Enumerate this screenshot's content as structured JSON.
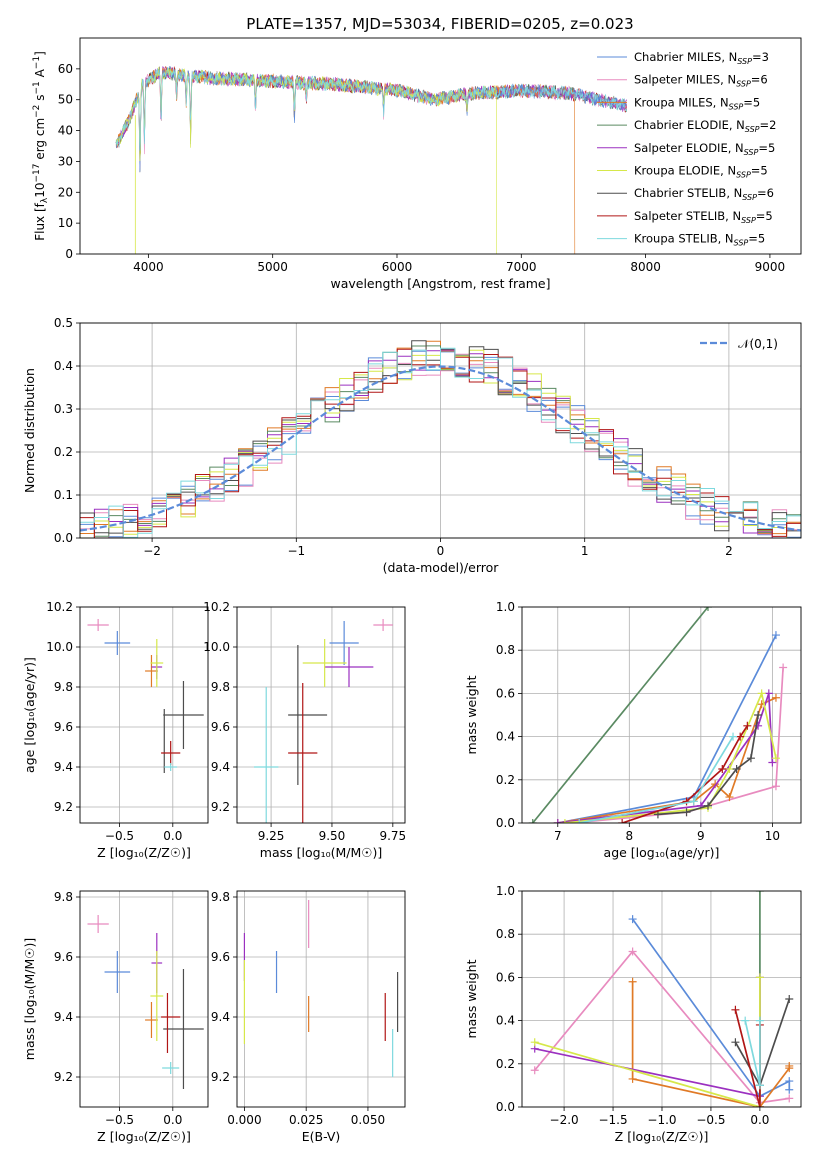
{
  "figure_title": "PLATE=1357, MJD=53034, FIBERID=0205, z=0.023",
  "colors": {
    "c0": "#5b8bd9",
    "c1": "#e88bbf",
    "c2": "#e07a26",
    "c3": "#5a8a62",
    "c4": "#9b30c0",
    "c5": "#d6e84a",
    "c6": "#4d4d4d",
    "c7": "#b01616",
    "c8": "#7ed9de"
  },
  "legend_entries": [
    {
      "text": "Chabrier MILES, N",
      "sub": "SSP",
      "tail": "=3",
      "color": "#5b8bd9"
    },
    {
      "text": "Salpeter MILES, N",
      "sub": "SSP",
      "tail": "=6",
      "color": "#e88bbf"
    },
    {
      "text": "Kroupa MILES, N",
      "sub": "SSP",
      "tail": "=5",
      "color": "#e07a26"
    },
    {
      "text": "Chabrier ELODIE, N",
      "sub": "SSP",
      "tail": "=2",
      "color": "#5a8a62"
    },
    {
      "text": "Salpeter ELODIE, N",
      "sub": "SSP",
      "tail": "=5",
      "color": "#9b30c0"
    },
    {
      "text": "Kroupa ELODIE, N",
      "sub": "SSP",
      "tail": "=5",
      "color": "#d6e84a"
    },
    {
      "text": "Chabrier STELIB, N",
      "sub": "SSP",
      "tail": "=6",
      "color": "#4d4d4d"
    },
    {
      "text": "Salpeter STELIB, N",
      "sub": "SSP",
      "tail": "=5",
      "color": "#b01616"
    },
    {
      "text": "Kroupa STELIB, N",
      "sub": "SSP",
      "tail": "=5",
      "color": "#7ed9de"
    }
  ],
  "chart_data": [
    {
      "id": "spectrum",
      "type": "line",
      "xlabel": "wavelength [Angstrom, rest frame]",
      "ylabel_parts": [
        "Flux [f",
        "λ",
        "10",
        "−17",
        " erg cm",
        "−2",
        " s",
        "−1",
        " A",
        "−1",
        "]"
      ],
      "xlim": [
        3450,
        9250
      ],
      "ylim": [
        0,
        70
      ],
      "xticks": [
        4000,
        5000,
        6000,
        7000,
        8000,
        9000
      ],
      "yticks": [
        0,
        10,
        20,
        30,
        40,
        50,
        60
      ],
      "wavelength_range": [
        3740,
        7850
      ],
      "continuum_knots": [
        [
          3740,
          35
        ],
        [
          3850,
          44
        ],
        [
          3950,
          55
        ],
        [
          4100,
          59
        ],
        [
          4500,
          57
        ],
        [
          5000,
          56
        ],
        [
          5500,
          55
        ],
        [
          6000,
          53
        ],
        [
          6300,
          50
        ],
        [
          6600,
          52
        ],
        [
          7000,
          53
        ],
        [
          7400,
          52
        ],
        [
          7850,
          48
        ]
      ],
      "absorption_lines": [
        [
          3933,
          28
        ],
        [
          3968,
          22
        ],
        [
          4102,
          18
        ],
        [
          4227,
          8
        ],
        [
          4304,
          10
        ],
        [
          4340,
          22
        ],
        [
          4861,
          10
        ],
        [
          5175,
          12
        ],
        [
          5270,
          6
        ],
        [
          5892,
          8
        ],
        [
          6563,
          6
        ]
      ],
      "truncation": {
        "c2": 7430,
        "c5": 6800
      }
    },
    {
      "id": "residuals",
      "type": "step-histogram",
      "xlabel": "(data-model)/error",
      "ylabel": "Normed distribution",
      "xlim": [
        -2.5,
        2.5
      ],
      "ylim": [
        0,
        0.5
      ],
      "xticks": [
        -2,
        -1,
        0,
        1,
        2
      ],
      "yticks": [
        0,
        0.1,
        0.2,
        0.3,
        0.4,
        0.5
      ],
      "bin_width": 0.1,
      "reference_curve": {
        "label": "𝒩(0,1)",
        "mean": 0,
        "sigma": 1,
        "color": "#5b8bd9"
      }
    },
    {
      "id": "age_vs_Z",
      "type": "errorbar",
      "xlabel": "Z [log₁₀(Z/Z☉)]",
      "ylabel": "age  [log₁₀(age/yr)]",
      "xlim": [
        -0.87,
        0.33
      ],
      "ylim": [
        9.12,
        10.2
      ],
      "xticks": [
        -0.5,
        0.0
      ],
      "xticklabels": [
        "−0.5",
        "0.0"
      ],
      "yticks": [
        9.2,
        9.4,
        9.6,
        9.8,
        10.0,
        10.2
      ],
      "points": [
        {
          "c": "c0",
          "x": -0.52,
          "y": 10.02,
          "xe": 0.12,
          "ye": 0.06
        },
        {
          "c": "c1",
          "x": -0.7,
          "y": 10.11,
          "xe": 0.1,
          "ye": 0.03
        },
        {
          "c": "c2",
          "x": -0.2,
          "y": 9.88,
          "xe": 0.06,
          "ye": 0.08
        },
        {
          "c": "c4",
          "x": -0.15,
          "y": 9.9,
          "xe": 0.05,
          "ye": 0.06
        },
        {
          "c": "c5",
          "x": -0.15,
          "y": 9.92,
          "xe": 0.06,
          "ye": 0.12
        },
        {
          "c": "c6",
          "x": 0.1,
          "y": 9.66,
          "xe": 0.19,
          "ye": 0.17
        },
        {
          "c": "c6",
          "x": -0.08,
          "y": 9.53,
          "xe": 0.0,
          "ye": 0.16
        },
        {
          "c": "c7",
          "x": -0.02,
          "y": 9.47,
          "xe": 0.09,
          "ye": 0.06
        },
        {
          "c": "c8",
          "x": -0.02,
          "y": 9.4,
          "xe": 0.06,
          "ye": 0.02
        }
      ]
    },
    {
      "id": "age_vs_mass",
      "type": "errorbar",
      "xlabel": "mass [log₁₀(M/M☉)]",
      "ylabel": "",
      "xlim": [
        9.11,
        9.8
      ],
      "ylim": [
        9.12,
        10.2
      ],
      "xticks": [
        9.25,
        9.5,
        9.75
      ],
      "xticklabels": [
        "9.25",
        "9.50",
        "9.75"
      ],
      "yticks": [
        9.2,
        9.4,
        9.6,
        9.8,
        10.0,
        10.2
      ],
      "points": [
        {
          "c": "c0",
          "x": 9.55,
          "y": 10.02,
          "xe": 0.06,
          "ye": 0.11
        },
        {
          "c": "c1",
          "x": 9.71,
          "y": 10.11,
          "xe": 0.04,
          "ye": 0.03
        },
        {
          "c": "c4",
          "x": 9.57,
          "y": 9.9,
          "xe": 0.1,
          "ye": 0.1
        },
        {
          "c": "c5",
          "x": 9.47,
          "y": 9.92,
          "xe": 0.09,
          "ye": 0.12
        },
        {
          "c": "c6",
          "x": 9.36,
          "y": 9.66,
          "xe": 0.0,
          "ye": 0.35
        },
        {
          "c": "c6",
          "x": 9.4,
          "y": 9.66,
          "xe": 0.08,
          "ye": 0.0
        },
        {
          "c": "c7",
          "x": 9.38,
          "y": 9.47,
          "xe": 0.06,
          "ye": 0.35
        },
        {
          "c": "c8",
          "x": 9.23,
          "y": 9.4,
          "xe": 0.05,
          "ye": 0.4
        }
      ]
    },
    {
      "id": "massweight_vs_age",
      "type": "line",
      "xlabel": "age  [log₁₀(age/yr)]",
      "ylabel": "mass weight",
      "xlim": [
        6.5,
        10.4
      ],
      "ylim": [
        0,
        1.0
      ],
      "xticks": [
        7,
        8,
        9,
        10
      ],
      "yticks": [
        0,
        0.2,
        0.4,
        0.6,
        0.8,
        1.0
      ],
      "series": [
        {
          "c": "c3",
          "x": [
            6.65,
            9.1
          ],
          "y": [
            0.0,
            1.0
          ]
        },
        {
          "c": "c0",
          "x": [
            7.0,
            8.9,
            10.05
          ],
          "y": [
            0.0,
            0.12,
            0.87
          ]
        },
        {
          "c": "c1",
          "x": [
            7.2,
            8.8,
            10.05,
            10.15
          ],
          "y": [
            0.0,
            0.05,
            0.17,
            0.72
          ]
        },
        {
          "c": "c2",
          "x": [
            7.0,
            8.9,
            9.2,
            9.4,
            9.85,
            10.05
          ],
          "y": [
            0.0,
            0.1,
            0.18,
            0.12,
            0.55,
            0.58
          ]
        },
        {
          "c": "c4",
          "x": [
            7.0,
            9.0,
            9.8,
            9.95,
            10.0
          ],
          "y": [
            0.0,
            0.08,
            0.45,
            0.6,
            0.28
          ]
        },
        {
          "c": "c5",
          "x": [
            7.1,
            9.1,
            9.4,
            9.85,
            10.05
          ],
          "y": [
            0.0,
            0.07,
            0.25,
            0.6,
            0.3
          ]
        },
        {
          "c": "c6",
          "x": [
            8.4,
            8.8,
            9.1,
            9.5,
            9.7,
            9.8
          ],
          "y": [
            0.04,
            0.05,
            0.08,
            0.25,
            0.3,
            0.5
          ]
        },
        {
          "c": "c7",
          "x": [
            7.9,
            8.8,
            9.3,
            9.55,
            9.65
          ],
          "y": [
            0.0,
            0.1,
            0.25,
            0.4,
            0.45
          ]
        },
        {
          "c": "c8",
          "x": [
            7.3,
            8.9,
            9.45
          ],
          "y": [
            0.0,
            0.1,
            0.4
          ]
        }
      ]
    },
    {
      "id": "mass_vs_Z",
      "type": "errorbar",
      "xlabel": "Z [log₁₀(Z/Z☉)]",
      "ylabel": "mass [log₁₀(M/M☉)]",
      "xlim": [
        -0.87,
        0.33
      ],
      "ylim": [
        9.1,
        9.82
      ],
      "xticks": [
        -0.5,
        0.0
      ],
      "xticklabels": [
        "−0.5",
        "0.0"
      ],
      "yticks": [
        9.2,
        9.4,
        9.6,
        9.8
      ],
      "points": [
        {
          "c": "c0",
          "x": -0.52,
          "y": 9.55,
          "xe": 0.12,
          "ye": 0.07
        },
        {
          "c": "c1",
          "x": -0.7,
          "y": 9.71,
          "xe": 0.1,
          "ye": 0.03
        },
        {
          "c": "c2",
          "x": -0.2,
          "y": 9.39,
          "xe": 0.06,
          "ye": 0.06
        },
        {
          "c": "c4",
          "x": -0.15,
          "y": 9.58,
          "xe": 0.05,
          "ye": 0.1
        },
        {
          "c": "c5",
          "x": -0.15,
          "y": 9.47,
          "xe": 0.06,
          "ye": 0.15
        },
        {
          "c": "c6",
          "x": 0.1,
          "y": 9.36,
          "xe": 0.19,
          "ye": 0.2
        },
        {
          "c": "c7",
          "x": -0.02,
          "y": 9.4,
          "xe": 0.09,
          "ye": 0.0
        },
        {
          "c": "c7",
          "x": -0.05,
          "y": 9.38,
          "xe": 0.0,
          "ye": 0.1
        },
        {
          "c": "c8",
          "x": -0.02,
          "y": 9.23,
          "xe": 0.08,
          "ye": 0.02
        }
      ]
    },
    {
      "id": "mass_vs_ebv",
      "type": "errorbar",
      "xlabel": "E(B-V)",
      "ylabel": "",
      "xlim": [
        -0.003,
        0.065
      ],
      "ylim": [
        9.1,
        9.82
      ],
      "xticks": [
        0.0,
        0.025,
        0.05
      ],
      "xticklabels": [
        "0.000",
        "0.025",
        "0.050"
      ],
      "yticks": [
        9.2,
        9.4,
        9.6,
        9.8
      ],
      "points": [
        {
          "c": "c1",
          "x": 0.026,
          "y": 9.71,
          "xe": 0.0,
          "ye": 0.08
        },
        {
          "c": "c4",
          "x": 0.0,
          "y": 9.6,
          "xe": 0.0,
          "ye": 0.08
        },
        {
          "c": "c0",
          "x": 0.013,
          "y": 9.55,
          "xe": 0.0,
          "ye": 0.07
        },
        {
          "c": "c5",
          "x": 0.0,
          "y": 9.45,
          "xe": 0.0,
          "ye": 0.14
        },
        {
          "c": "c2",
          "x": 0.026,
          "y": 9.41,
          "xe": 0.0,
          "ye": 0.06
        },
        {
          "c": "c7",
          "x": 0.057,
          "y": 9.4,
          "xe": 0.0,
          "ye": 0.08
        },
        {
          "c": "c6",
          "x": 0.062,
          "y": 9.45,
          "xe": 0.0,
          "ye": 0.1
        },
        {
          "c": "c8",
          "x": 0.06,
          "y": 9.28,
          "xe": 0.0,
          "ye": 0.08
        }
      ]
    },
    {
      "id": "massweight_vs_Z",
      "type": "line",
      "xlabel": "Z [log₁₀(Z/Z☉)]",
      "ylabel": "mass weight",
      "xlim": [
        -2.43,
        0.42
      ],
      "ylim": [
        0,
        1.0
      ],
      "xticks": [
        -2.0,
        -1.5,
        -1.0,
        -0.5,
        0.0
      ],
      "xticklabels": [
        "−2.0",
        "−1.5",
        "−1.0",
        "−0.5",
        "0.0"
      ],
      "yticks": [
        0,
        0.2,
        0.4,
        0.6,
        0.8,
        1.0
      ],
      "series": [
        {
          "c": "c3",
          "x": [
            0.0,
            0.0
          ],
          "y": [
            0.0,
            1.0
          ]
        },
        {
          "c": "c0",
          "x": [
            -1.3,
            0.0,
            0.3,
            0.3
          ],
          "y": [
            0.87,
            0.05,
            0.12,
            0.08
          ]
        },
        {
          "c": "c1",
          "x": [
            -2.3,
            -1.3,
            0.0,
            0.3
          ],
          "y": [
            0.17,
            0.72,
            0.02,
            0.04
          ]
        },
        {
          "c": "c2",
          "x": [
            -1.3,
            -1.3,
            0.0,
            0.3,
            0.3
          ],
          "y": [
            0.58,
            0.13,
            0.0,
            0.18,
            0.19
          ]
        },
        {
          "c": "c4",
          "x": [
            -2.3,
            0.0,
            0.0
          ],
          "y": [
            0.27,
            0.05,
            0.6
          ]
        },
        {
          "c": "c5",
          "x": [
            -2.3,
            0.0,
            0.0
          ],
          "y": [
            0.3,
            0.0,
            0.6
          ]
        },
        {
          "c": "c6",
          "x": [
            -0.25,
            0.0,
            0.3
          ],
          "y": [
            0.3,
            0.1,
            0.5
          ]
        },
        {
          "c": "c7",
          "x": [
            -0.25,
            0.0,
            0.0
          ],
          "y": [
            0.45,
            0.0,
            0.38
          ]
        },
        {
          "c": "c8",
          "x": [
            -0.15,
            0.0,
            0.0
          ],
          "y": [
            0.4,
            0.1,
            0.4
          ]
        }
      ]
    }
  ]
}
